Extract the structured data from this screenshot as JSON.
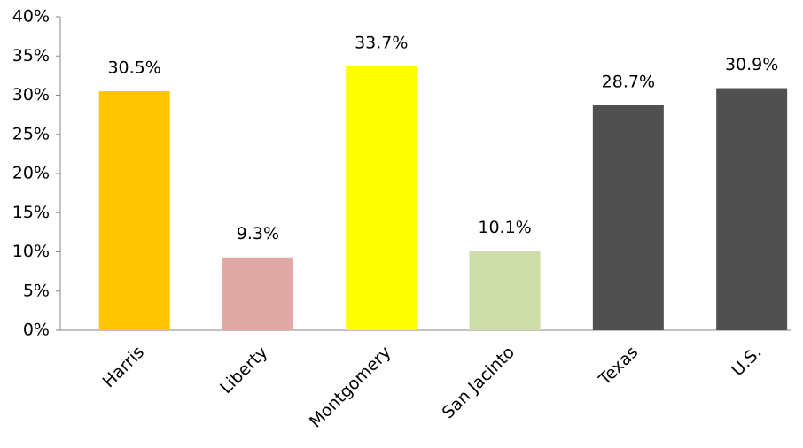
{
  "chart_data": {
    "type": "bar",
    "categories": [
      "Harris",
      "Liberty",
      "Montgomery",
      "San Jacinto",
      "Texas",
      "U.S."
    ],
    "values": [
      30.5,
      9.3,
      33.7,
      10.1,
      28.7,
      30.9
    ],
    "value_labels": [
      "30.5%",
      "9.3%",
      "33.7%",
      "10.1%",
      "28.7%",
      "30.9%"
    ],
    "colors": [
      "#ffc600",
      "#e0a9a6",
      "#ffff00",
      "#cfddaa",
      "#505050",
      "#505050"
    ],
    "ylim": [
      0,
      40
    ],
    "yticks": [
      {
        "value": 0,
        "label": "0%"
      },
      {
        "value": 5,
        "label": "5%"
      },
      {
        "value": 10,
        "label": "10%"
      },
      {
        "value": 15,
        "label": "15%"
      },
      {
        "value": 20,
        "label": "20%"
      },
      {
        "value": 25,
        "label": "25%"
      },
      {
        "value": 30,
        "label": "30%"
      },
      {
        "value": 35,
        "label": "35%"
      },
      {
        "value": 40,
        "label": "40%"
      }
    ],
    "grid": false
  }
}
